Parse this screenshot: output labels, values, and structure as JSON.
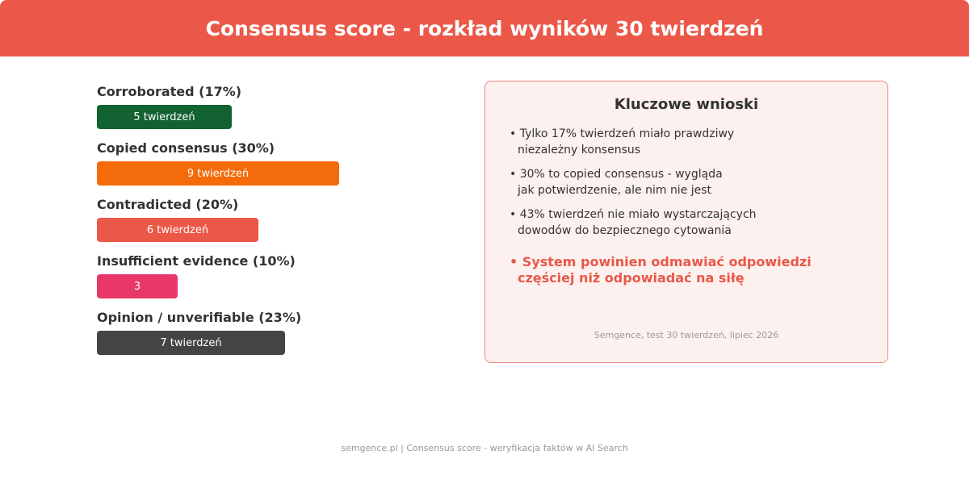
{
  "header": {
    "title": "Consensus score - rozkład wyników 30 twierdzeń"
  },
  "chart_data": {
    "type": "bar",
    "orientation": "horizontal",
    "title": "Consensus score - rozkład wyników 30 twierdzeń",
    "categories": [
      "Corroborated (17%)",
      "Copied consensus (30%)",
      "Contradicted (20%)",
      "Insufficient evidence (10%)",
      "Opinion / unverifiable (23%)"
    ],
    "values": [
      5,
      9,
      6,
      3,
      7
    ],
    "data_labels": [
      "5 twierdzeń",
      "9 twierdzeń",
      "6 twierdzeń",
      "3",
      "7 twierdzeń"
    ],
    "colors": [
      "#136231",
      "#f46b0c",
      "#ec5848",
      "#e8386a",
      "#444444"
    ],
    "xlim": [
      0,
      9
    ],
    "grid": false,
    "legend": "none"
  },
  "panel": {
    "title": "Kluczowe wnioski",
    "points": [
      {
        "lines": [
          "• Tylko 17% twierdzeń miało prawdziwy",
          "niezależny konsensus"
        ]
      },
      {
        "lines": [
          "• 30% to copied consensus - wygląda",
          "jak potwierdzenie, ale nim nie jest"
        ]
      },
      {
        "lines": [
          "• 43% twierdzeń nie miało wystarczających",
          "dowodów do bezpiecznego cytowania"
        ]
      }
    ],
    "highlight": {
      "lines": [
        "• System powinien odmawiać odpowiedzi",
        "częściej niż odpowiadać na siłę"
      ]
    },
    "source": "Semgence, test 30 twierdzeń, lipiec 2026",
    "accent_color": "#e85848"
  },
  "footer": {
    "text": "semgence.pl | Consensus score - weryfikacja faktów w AI Search"
  }
}
